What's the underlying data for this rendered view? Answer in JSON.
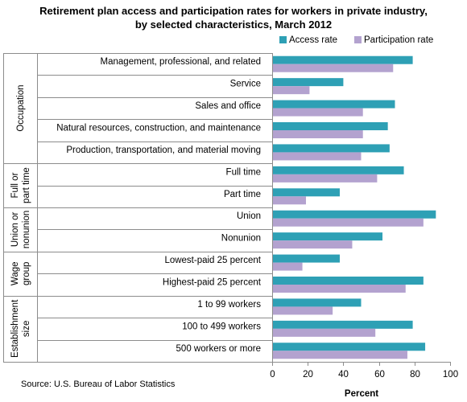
{
  "chart_data": {
    "type": "bar",
    "orientation": "horizontal",
    "title": [
      "Retirement plan access and participation rates for workers in private industry,",
      "by selected characteristics, March 2012"
    ],
    "xlabel": "Percent",
    "xlim": [
      0,
      100
    ],
    "xticks": [
      0,
      20,
      40,
      60,
      80,
      100
    ],
    "grid": false,
    "legend_position": "top-right",
    "series": [
      {
        "name": "Access rate",
        "color": "#2ea0b5"
      },
      {
        "name": "Participation rate",
        "color": "#b3a2cf"
      }
    ],
    "groups": [
      {
        "label": [
          "Occupation"
        ],
        "items": [
          {
            "label": "Management, professional, and related",
            "values": [
              79,
              68
            ]
          },
          {
            "label": "Service",
            "values": [
              40,
              21
            ]
          },
          {
            "label": "Sales and office",
            "values": [
              69,
              51
            ]
          },
          {
            "label": "Natural resources, construction, and maintenance",
            "values": [
              65,
              51
            ]
          },
          {
            "label": "Production, transportation, and material moving",
            "values": [
              66,
              50
            ]
          }
        ]
      },
      {
        "label": [
          "Full or",
          "part time"
        ],
        "items": [
          {
            "label": "Full time",
            "values": [
              74,
              59
            ]
          },
          {
            "label": "Part time",
            "values": [
              38,
              19
            ]
          }
        ]
      },
      {
        "label": [
          "Union or",
          "nonunion"
        ],
        "items": [
          {
            "label": "Union",
            "values": [
              92,
              85
            ]
          },
          {
            "label": "Nonunion",
            "values": [
              62,
              45
            ]
          }
        ]
      },
      {
        "label": [
          "Wage",
          "group"
        ],
        "items": [
          {
            "label": "Lowest-paid 25 percent",
            "values": [
              38,
              17
            ]
          },
          {
            "label": "Highest-paid 25 percent",
            "values": [
              85,
              75
            ]
          }
        ]
      },
      {
        "label": [
          "Establishment",
          "size"
        ],
        "items": [
          {
            "label": "1 to 99 workers",
            "values": [
              50,
              34
            ]
          },
          {
            "label": "100 to 499 workers",
            "values": [
              79,
              58
            ]
          },
          {
            "label": "500 workers or more",
            "values": [
              86,
              76
            ]
          }
        ]
      }
    ]
  },
  "source": "Source: U.S. Bureau of Labor Statistics"
}
